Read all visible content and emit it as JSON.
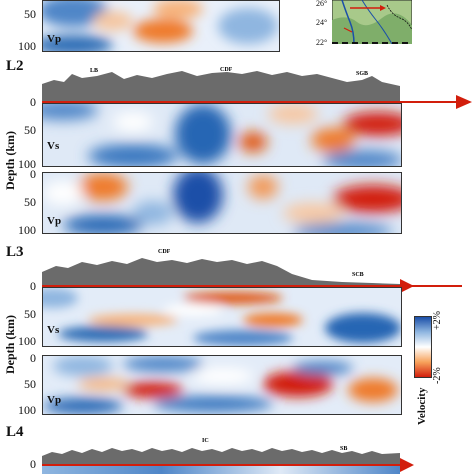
{
  "top_strip": {
    "y_ticks": [
      "50",
      "100"
    ],
    "panel_label": "Vp"
  },
  "inset_map": {
    "lat_labels": [
      "26°",
      "24°",
      "22°"
    ]
  },
  "sections": [
    {
      "title": "L2",
      "geo_labels": [
        "LB",
        "CDF",
        "SGB"
      ],
      "panels": [
        {
          "label": "Vs",
          "y_ticks": [
            "0",
            "50",
            "100"
          ]
        },
        {
          "label": "Vp",
          "y_ticks": [
            "0",
            "50",
            "100"
          ]
        }
      ],
      "y_axis_label": "Depth (km)"
    },
    {
      "title": "L3",
      "geo_labels": [
        "CDF",
        "SCB"
      ],
      "panels": [
        {
          "label": "Vs",
          "y_ticks": [
            "0",
            "50",
            "100"
          ]
        },
        {
          "label": "Vp",
          "y_ticks": [
            "0",
            "50",
            "100"
          ]
        }
      ],
      "y_axis_label": "Depth (km)"
    },
    {
      "title": "L4",
      "geo_labels": [
        "IC",
        "SB"
      ],
      "panels": [
        {
          "label": "",
          "y_ticks": [
            "0"
          ]
        }
      ]
    }
  ],
  "colorbar": {
    "top_label": "+2%",
    "bottom_label": "-2%",
    "title": "Velocity",
    "colors": [
      "#1b4fa8",
      "#8fb6e0",
      "#ffffff",
      "#f7a35c",
      "#d21e0c"
    ]
  },
  "colors": {
    "topography": "#6b6b6b",
    "section_line": "#d21e0c",
    "slow": "#e0540f",
    "fast": "#2766b4"
  }
}
